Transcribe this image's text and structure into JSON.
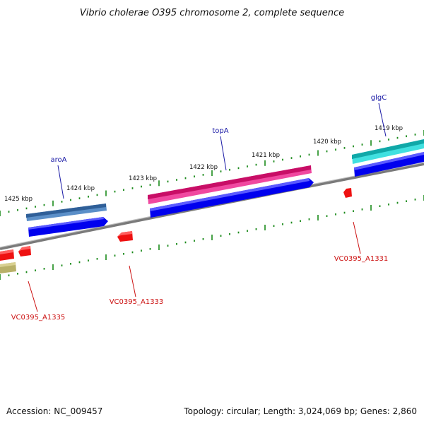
{
  "title": "Vibrio cholerae O395 chromosome 2, complete sequence",
  "ticks": [
    "1425 kbp",
    "1424 kbp",
    "1423 kbp",
    "1422 kbp",
    "1421 kbp",
    "1420 kbp",
    "1419 kbp"
  ],
  "genes_top": [
    "aroA",
    "topA",
    "glgC"
  ],
  "genes_bottom": [
    "VC0395_A1335",
    "VC0395_A1333",
    "VC0395_A1331"
  ],
  "footer": {
    "accession": "Accession: NC_009457",
    "topology": "Topology: circular; Length: 3,024,069 bp; Genes: 2,860"
  },
  "colors": {
    "backbone": "#8a8a8a",
    "tick": "#1a8a1a",
    "cds_forward": "#0000ee",
    "gene_aroA": "#3b6ea8",
    "gene_topA": "#e0187a",
    "gene_glgC": "#18c4c4",
    "gene_reverse": "#ee1111",
    "gene_olive": "#a8a050",
    "label_top": "#1a1aa6",
    "label_bottom": "#cc1111"
  }
}
